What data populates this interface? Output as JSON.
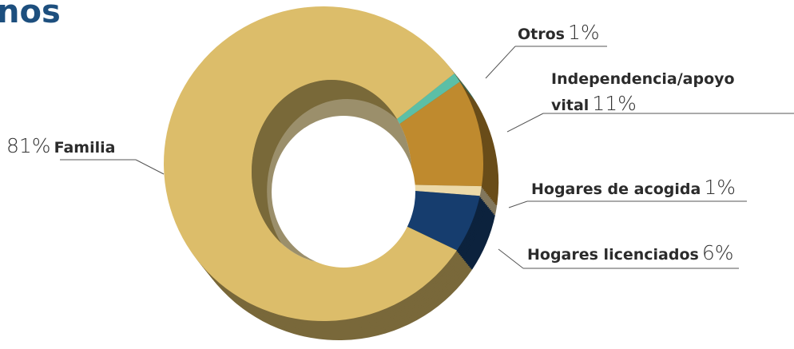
{
  "chart_data": {
    "type": "donut",
    "title": "nos",
    "categories": [
      "Otros",
      "Independencia/apoyo vital",
      "Hogares de acogida",
      "Hogares licenciados",
      "Familia"
    ],
    "values": [
      1,
      11,
      1,
      6,
      81
    ],
    "value_labels": [
      "1%",
      "11%",
      "1%",
      "6%",
      "81%"
    ],
    "colors": [
      "#5cbfa6",
      "#bf8a2e",
      "#ecd9a8",
      "#163d6e",
      "#dcbd6a"
    ]
  }
}
